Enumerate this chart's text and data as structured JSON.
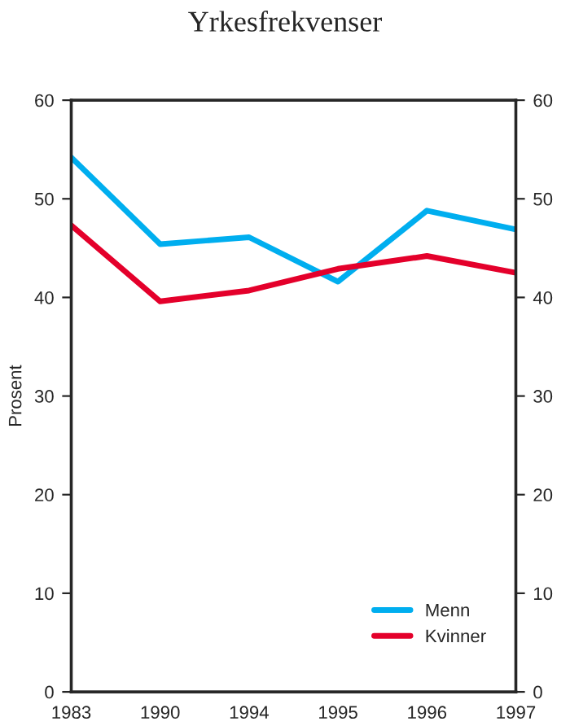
{
  "chart_data": {
    "type": "line",
    "title": "Yrkesfrekvenser",
    "ylabel": "Prosent",
    "categories": [
      "1983",
      "1990",
      "1994",
      "1995",
      "1996",
      "1997"
    ],
    "series": [
      {
        "name": "Menn",
        "color": "#00aeef",
        "values": [
          54.2,
          45.4,
          46.1,
          41.6,
          48.8,
          46.9
        ]
      },
      {
        "name": "Kvinner",
        "color": "#e4002b",
        "values": [
          47.3,
          39.6,
          40.7,
          42.9,
          44.2,
          42.5
        ]
      }
    ],
    "ylim": [
      0,
      60
    ],
    "yticks": [
      0,
      10,
      20,
      30,
      40,
      50,
      60
    ],
    "y2lim": [
      0,
      60
    ],
    "y2ticks": [
      0,
      10,
      20,
      30,
      40,
      50,
      60
    ],
    "grid": false,
    "legend": "bottom right",
    "marker": "none",
    "line_style": "solid"
  }
}
